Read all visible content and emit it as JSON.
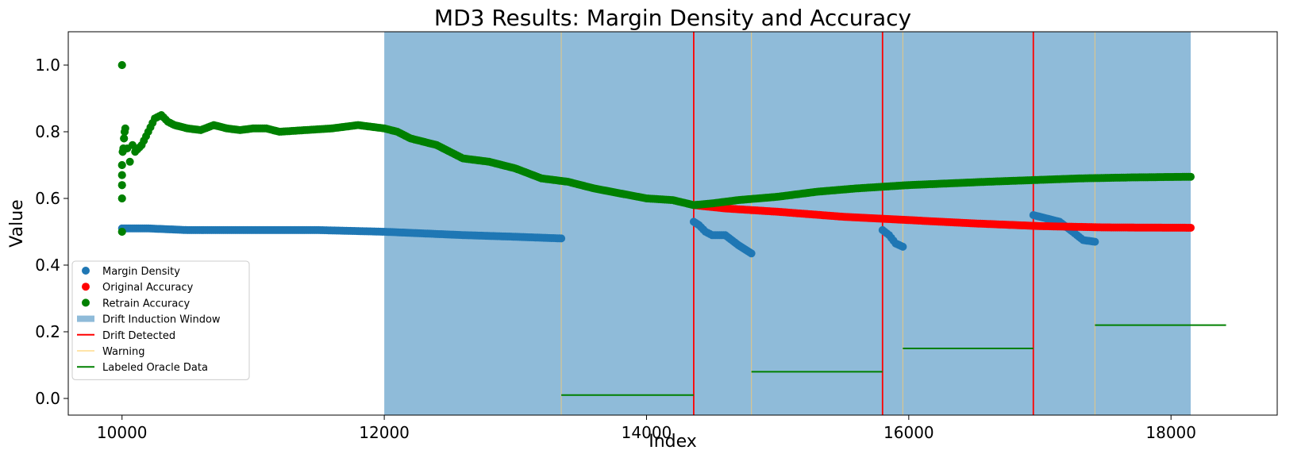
{
  "chart_data": {
    "type": "scatter",
    "title": "MD3 Results: Margin Density and Accuracy",
    "xlabel": "Index",
    "ylabel": "Value",
    "xlim": [
      9590,
      18810
    ],
    "ylim": [
      -0.05,
      1.1
    ],
    "x_ticks": [
      10000,
      12000,
      14000,
      16000,
      18000
    ],
    "y_ticks": [
      0.0,
      0.2,
      0.4,
      0.6,
      0.8,
      1.0
    ],
    "grid": false,
    "legend_position": "lower-left",
    "legend": [
      {
        "label": "Margin Density",
        "kind": "marker",
        "color": "#1f77b4"
      },
      {
        "label": "Original Accuracy",
        "kind": "marker",
        "color": "#ff0000"
      },
      {
        "label": "Retrain Accuracy",
        "kind": "marker",
        "color": "#008000"
      },
      {
        "label": "Drift Induction Window",
        "kind": "patch",
        "color": "#1f77b4"
      },
      {
        "label": "Drift Detected",
        "kind": "line",
        "color": "#ff0000"
      },
      {
        "label": "Warning",
        "kind": "line",
        "color": "#ffe4a8"
      },
      {
        "label": "Labeled Oracle Data",
        "kind": "line",
        "color": "#008000"
      }
    ],
    "drift_induction_window": {
      "x_start": 12000,
      "x_end": 18150,
      "color": "#1f77b4",
      "alpha": 0.5
    },
    "drift_detected_x": [
      14360,
      15800,
      16950
    ],
    "warning_x": [
      13350,
      14800,
      15955,
      17420
    ],
    "labeled_oracle_data": [
      {
        "x_start": 13350,
        "x_end": 14360,
        "y": 0.01
      },
      {
        "x_start": 14800,
        "x_end": 15800,
        "y": 0.08
      },
      {
        "x_start": 15955,
        "x_end": 16950,
        "y": 0.15
      },
      {
        "x_start": 17420,
        "x_end": 18420,
        "y": 0.22
      }
    ],
    "series": [
      {
        "name": "Margin Density",
        "color": "#1f77b4",
        "segments": [
          [
            [
              10000,
              0.51
            ],
            [
              10200,
              0.51
            ],
            [
              10500,
              0.505
            ],
            [
              11000,
              0.505
            ],
            [
              11500,
              0.505
            ],
            [
              12000,
              0.5
            ],
            [
              12300,
              0.495
            ],
            [
              12600,
              0.49
            ],
            [
              13000,
              0.485
            ],
            [
              13350,
              0.48
            ]
          ],
          [
            [
              14360,
              0.53
            ],
            [
              14400,
              0.52
            ],
            [
              14450,
              0.5
            ],
            [
              14500,
              0.49
            ],
            [
              14600,
              0.49
            ],
            [
              14700,
              0.46
            ],
            [
              14800,
              0.435
            ]
          ],
          [
            [
              15800,
              0.505
            ],
            [
              15850,
              0.49
            ],
            [
              15900,
              0.465
            ],
            [
              15955,
              0.455
            ]
          ],
          [
            [
              16950,
              0.55
            ],
            [
              17050,
              0.54
            ],
            [
              17150,
              0.53
            ],
            [
              17250,
              0.5
            ],
            [
              17330,
              0.475
            ],
            [
              17420,
              0.47
            ]
          ]
        ]
      },
      {
        "name": "Original Accuracy",
        "color": "#ff0000",
        "segments": [
          [
            [
              14360,
              0.58
            ],
            [
              14600,
              0.57
            ],
            [
              15000,
              0.56
            ],
            [
              15500,
              0.545
            ],
            [
              16000,
              0.535
            ],
            [
              16500,
              0.525
            ],
            [
              17000,
              0.517
            ],
            [
              17500,
              0.513
            ],
            [
              18150,
              0.512
            ]
          ]
        ]
      },
      {
        "name": "Retrain Accuracy",
        "color": "#008000",
        "segments": [
          [
            [
              10000,
              1.0
            ],
            [
              10000,
              0.5
            ],
            [
              10000,
              0.6
            ],
            [
              10000,
              0.64
            ],
            [
              10000,
              0.67
            ],
            [
              10000,
              0.7
            ],
            [
              10005,
              0.74
            ],
            [
              10010,
              0.75
            ],
            [
              10015,
              0.78
            ],
            [
              10020,
              0.8
            ],
            [
              10025,
              0.81
            ],
            [
              10040,
              0.75
            ],
            [
              10060,
              0.71
            ],
            [
              10080,
              0.76
            ],
            [
              10100,
              0.74
            ],
            [
              10150,
              0.76
            ],
            [
              10200,
              0.8
            ],
            [
              10250,
              0.84
            ],
            [
              10300,
              0.85
            ],
            [
              10350,
              0.83
            ],
            [
              10400,
              0.82
            ],
            [
              10500,
              0.81
            ],
            [
              10600,
              0.805
            ],
            [
              10700,
              0.82
            ],
            [
              10800,
              0.81
            ],
            [
              10900,
              0.805
            ],
            [
              11000,
              0.81
            ],
            [
              11100,
              0.81
            ],
            [
              11200,
              0.8
            ],
            [
              11400,
              0.805
            ],
            [
              11600,
              0.81
            ],
            [
              11800,
              0.82
            ],
            [
              12000,
              0.81
            ],
            [
              12100,
              0.8
            ],
            [
              12200,
              0.78
            ],
            [
              12400,
              0.76
            ],
            [
              12600,
              0.72
            ],
            [
              12800,
              0.71
            ],
            [
              13000,
              0.69
            ],
            [
              13200,
              0.66
            ],
            [
              13400,
              0.65
            ],
            [
              13600,
              0.63
            ],
            [
              13800,
              0.615
            ],
            [
              14000,
              0.6
            ],
            [
              14200,
              0.595
            ],
            [
              14360,
              0.58
            ],
            [
              14500,
              0.585
            ],
            [
              14700,
              0.595
            ],
            [
              15000,
              0.605
            ],
            [
              15300,
              0.62
            ],
            [
              15600,
              0.63
            ],
            [
              15800,
              0.635
            ],
            [
              16000,
              0.64
            ],
            [
              16300,
              0.645
            ],
            [
              16600,
              0.65
            ],
            [
              16950,
              0.655
            ],
            [
              17300,
              0.66
            ],
            [
              17700,
              0.663
            ],
            [
              18150,
              0.665
            ]
          ]
        ]
      }
    ]
  }
}
